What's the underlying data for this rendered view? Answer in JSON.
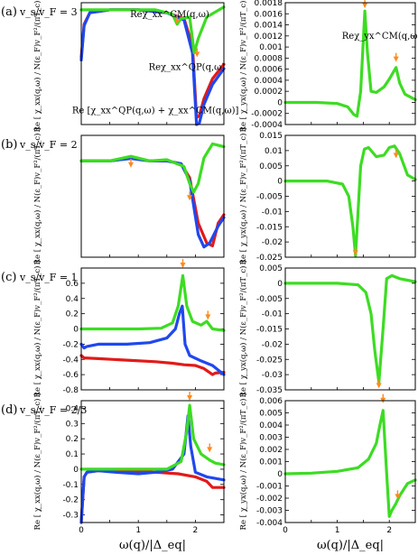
{
  "chart_data": [
    {
      "type": "line",
      "panel": "(a)",
      "side": "left",
      "row_label": "v_s/v_F = 3",
      "ylabel": "Re [ χ_xx(q,ω) / N(ε_F)v_F²/(πT_c) ]",
      "xlim": [
        0,
        2.5
      ],
      "ylim": [
        -0.8,
        0.05
      ],
      "yticks": [],
      "xticks": [],
      "annotations": [
        {
          "text": "Reχ_xx^CM(q,ω)",
          "color": "#3ddc23",
          "x": 1.55,
          "y": -0.05
        },
        {
          "text": "Reχ_xx^QP(q,ω)",
          "color": "#e21a1a",
          "x": 1.85,
          "y": -0.42
        },
        {
          "text": "Re [χ_xx^QP(q,ω) + χ_xx^CM(q,ω)]",
          "color": "#2048ee",
          "x": 1.3,
          "y": -0.72
        }
      ],
      "markers": [
        {
          "x": 1.68,
          "y": -0.1
        },
        {
          "x": 2.03,
          "y": -0.33
        }
      ],
      "series": [
        {
          "color": "#e21a1a",
          "x": [
            0,
            0.05,
            0.15,
            0.5,
            1.0,
            1.5,
            1.8,
            1.95,
            2.02,
            2.07,
            2.15,
            2.3,
            2.5
          ],
          "y": [
            -0.33,
            -0.1,
            -0.02,
            0,
            0,
            -0.02,
            -0.06,
            -0.25,
            -0.75,
            -0.74,
            -0.62,
            -0.48,
            -0.38
          ]
        },
        {
          "color": "#2048ee",
          "x": [
            0,
            0.05,
            0.15,
            0.5,
            1.0,
            1.5,
            1.8,
            1.95,
            2.02,
            2.07,
            2.15,
            2.3,
            2.5
          ],
          "y": [
            -0.35,
            -0.11,
            -0.02,
            0,
            0,
            -0.02,
            -0.07,
            -0.3,
            -0.8,
            -0.79,
            -0.66,
            -0.52,
            -0.41
          ]
        },
        {
          "color": "#3ddc23",
          "x": [
            0,
            0.1,
            0.5,
            1.0,
            1.3,
            1.6,
            1.68,
            1.75,
            1.9,
            1.98,
            2.05,
            2.2,
            2.5
          ],
          "y": [
            0,
            0,
            0,
            0,
            0,
            -0.03,
            -0.1,
            -0.06,
            -0.05,
            -0.3,
            -0.2,
            -0.05,
            0.02
          ]
        }
      ]
    },
    {
      "type": "line",
      "panel": "(a)",
      "side": "right",
      "ylabel": "Re [ χ_yx(q,ω) / N(ε_F)v_F²/(πT_c) ]",
      "xlim": [
        0,
        2.5
      ],
      "ylim": [
        -0.0004,
        0.0018
      ],
      "yticks": [
        "-0.0004",
        "-0.0002",
        "0",
        "0.0002",
        "0.0004",
        "0.0006",
        "0.0008",
        "0.001",
        "0.0012",
        "0.0014",
        "0.0016",
        "0.0018"
      ],
      "xticks": [],
      "annotations": [
        {
          "text": "Reχ_yx^CM(q,ω)",
          "color": "#3ddc23",
          "x": 1.85,
          "y": 0.00115
        }
      ],
      "markers": [
        {
          "x": 1.53,
          "y": 0.0017
        },
        {
          "x": 2.13,
          "y": 0.00073
        }
      ],
      "series": [
        {
          "color": "#3ddc23",
          "x": [
            0,
            0.6,
            1.0,
            1.2,
            1.32,
            1.38,
            1.45,
            1.53,
            1.58,
            1.65,
            1.75,
            1.9,
            2.0,
            2.08,
            2.13,
            2.2,
            2.3,
            2.5
          ],
          "y": [
            0,
            0,
            -2e-05,
            -8e-05,
            -0.00022,
            -0.00025,
            0.0002,
            0.00165,
            0.0009,
            0.0002,
            0.00018,
            0.00028,
            0.00042,
            0.00055,
            0.00063,
            0.00035,
            0.00015,
            5e-05
          ]
        }
      ]
    },
    {
      "type": "line",
      "panel": "(b)",
      "side": "left",
      "row_label": "v_s/v_F = 2",
      "ylabel": "Re [ χ_xx(q,ω) / N(ε_F)v_F²/(πT_c) ]",
      "xlim": [
        0,
        2.5
      ],
      "ylim": [
        -1.7,
        0.45
      ],
      "yticks": [],
      "xticks": [],
      "markers": [
        {
          "x": 0.87,
          "y": -0.12
        },
        {
          "x": 1.9,
          "y": -0.7
        }
      ],
      "series": [
        {
          "color": "#e21a1a",
          "x": [
            0,
            0.1,
            0.5,
            0.87,
            1.2,
            1.5,
            1.75,
            1.9,
            2.05,
            2.2,
            2.3,
            2.4,
            2.5
          ],
          "y": [
            0,
            0,
            0,
            0.05,
            0,
            0,
            -0.05,
            -0.3,
            -1.1,
            -1.45,
            -1.5,
            -1.1,
            -0.95
          ]
        },
        {
          "color": "#2048ee",
          "x": [
            0,
            0.1,
            0.5,
            0.87,
            1.2,
            1.5,
            1.75,
            1.9,
            2.05,
            2.15,
            2.25,
            2.4,
            2.5
          ],
          "y": [
            0,
            0,
            0,
            0.04,
            0,
            0,
            -0.05,
            -0.35,
            -1.3,
            -1.52,
            -1.45,
            -1.15,
            -1.0
          ]
        },
        {
          "color": "#3ddc23",
          "x": [
            0,
            0.1,
            0.5,
            0.87,
            1.2,
            1.5,
            1.8,
            1.9,
            1.97,
            2.05,
            2.15,
            2.3,
            2.5
          ],
          "y": [
            0,
            0,
            0,
            0.08,
            0,
            0.02,
            -0.1,
            -0.4,
            -0.55,
            -0.4,
            0.05,
            0.3,
            0.25
          ]
        }
      ]
    },
    {
      "type": "line",
      "panel": "(b)",
      "side": "right",
      "ylabel": "Re [ χ_yx(q,ω) / N(ε_F)v_F²/(πT_c) ]",
      "xlim": [
        0,
        2.5
      ],
      "ylim": [
        -0.025,
        0.015
      ],
      "yticks": [
        "-0.025",
        "-0.02",
        "-0.015",
        "-0.01",
        "-0.005",
        "0",
        "0.005",
        "0.01",
        "0.015"
      ],
      "xticks": [],
      "markers": [
        {
          "x": 1.35,
          "y": -0.0245
        },
        {
          "x": 2.13,
          "y": 0.0075
        }
      ],
      "series": [
        {
          "color": "#3ddc23",
          "x": [
            0,
            0.8,
            1.1,
            1.22,
            1.3,
            1.35,
            1.4,
            1.45,
            1.52,
            1.6,
            1.75,
            1.9,
            2.0,
            2.1,
            2.2,
            2.35,
            2.5
          ],
          "y": [
            0,
            0,
            -0.001,
            -0.005,
            -0.015,
            -0.0245,
            -0.01,
            0.005,
            0.0105,
            0.011,
            0.008,
            0.0085,
            0.011,
            0.0115,
            0.009,
            0.002,
            0.0005
          ]
        }
      ]
    },
    {
      "type": "line",
      "panel": "(c)",
      "side": "left",
      "row_label": "v_s/v_F = 1",
      "ylabel": "Re [ χ_xx(q,ω) / N(ε_F)v_F²/(πT_c) ]",
      "xlim": [
        0,
        2.5
      ],
      "ylim": [
        -0.8,
        0.8
      ],
      "yticks": [
        "-0.8",
        "-0.6",
        "-0.4",
        "-0.2",
        "0",
        "0.2",
        "0.4",
        "0.6"
      ],
      "xticks": [],
      "markers": [
        {
          "x": 1.78,
          "y": 0.8
        },
        {
          "x": 2.22,
          "y": 0.12
        }
      ],
      "series": [
        {
          "color": "#e21a1a",
          "x": [
            0,
            0.05,
            0.3,
            0.8,
            1.3,
            1.6,
            1.8,
            2.0,
            2.15,
            2.3,
            2.35,
            2.5
          ],
          "y": [
            -0.35,
            -0.38,
            -0.39,
            -0.41,
            -0.43,
            -0.45,
            -0.47,
            -0.48,
            -0.52,
            -0.6,
            -0.58,
            -0.57
          ]
        },
        {
          "color": "#2048ee",
          "x": [
            0,
            0.05,
            0.1,
            0.3,
            0.8,
            1.2,
            1.5,
            1.65,
            1.72,
            1.77,
            1.82,
            1.9,
            2.1,
            2.3,
            2.5
          ],
          "y": [
            -0.2,
            -0.25,
            -0.23,
            -0.2,
            -0.2,
            -0.18,
            -0.12,
            0.0,
            0.2,
            0.3,
            -0.2,
            -0.35,
            -0.42,
            -0.48,
            -0.6
          ]
        },
        {
          "color": "#3ddc23",
          "x": [
            0,
            0.5,
            1.0,
            1.4,
            1.6,
            1.7,
            1.78,
            1.85,
            1.95,
            2.1,
            2.2,
            2.3,
            2.5
          ],
          "y": [
            0,
            0,
            0,
            0.01,
            0.08,
            0.3,
            0.7,
            0.3,
            0.1,
            0.05,
            0.1,
            0.0,
            -0.02
          ]
        }
      ]
    },
    {
      "type": "line",
      "panel": "(c)",
      "side": "right",
      "ylabel": "Re [ χ_yx(q,ω) / N(ε_F)v_F²/(πT_c) ]",
      "xlim": [
        0,
        2.5
      ],
      "ylim": [
        -0.035,
        0.005
      ],
      "yticks": [
        "-0.035",
        "-0.03",
        "-0.025",
        "-0.02",
        "-0.015",
        "-0.01",
        "-0.005",
        "0",
        "0.005"
      ],
      "xticks": [],
      "markers": [
        {
          "x": 1.8,
          "y": -0.0345
        }
      ],
      "series": [
        {
          "color": "#3ddc23",
          "x": [
            0,
            1.0,
            1.4,
            1.55,
            1.65,
            1.72,
            1.8,
            1.88,
            1.95,
            2.05,
            2.2,
            2.35,
            2.5
          ],
          "y": [
            0,
            0,
            -0.0005,
            -0.003,
            -0.01,
            -0.022,
            -0.0325,
            -0.015,
            0.0015,
            0.0025,
            0.0015,
            0.001,
            0.0005
          ]
        }
      ]
    },
    {
      "type": "line",
      "panel": "(d)",
      "side": "left",
      "row_label": "v_s/v_F = 2/3",
      "ylabel": "Re [ χ_xx(q,ω) / N(ε_F)v_F²/(πT_c) ]",
      "xlim": [
        0,
        2.5
      ],
      "ylim": [
        -0.35,
        0.45
      ],
      "yticks": [
        "-0.3",
        "-0.2",
        "-0.1",
        "0",
        "0.1",
        "0.2",
        "0.3",
        "0.4"
      ],
      "xticks": [
        "0",
        "1",
        "2"
      ],
      "xlabel": "ω(q)/|Δ_eq|",
      "markers": [
        {
          "x": 1.9,
          "y": 0.45
        },
        {
          "x": 2.25,
          "y": 0.11
        }
      ],
      "series": [
        {
          "color": "#e21a1a",
          "x": [
            0,
            0.05,
            0.1,
            0.3,
            0.8,
            1.3,
            1.7,
            2.0,
            2.2,
            2.3,
            2.5
          ],
          "y": [
            -0.35,
            -0.05,
            -0.02,
            -0.01,
            -0.01,
            -0.02,
            -0.03,
            -0.05,
            -0.08,
            -0.12,
            -0.12
          ]
        },
        {
          "color": "#2048ee",
          "x": [
            0,
            0.05,
            0.1,
            0.3,
            0.6,
            1.0,
            1.3,
            1.6,
            1.8,
            1.87,
            1.92,
            2.0,
            2.2,
            2.5
          ],
          "y": [
            -0.35,
            -0.05,
            -0.02,
            -0.01,
            -0.02,
            -0.03,
            -0.02,
            -0.0,
            0.1,
            0.35,
            0.15,
            -0.02,
            -0.05,
            -0.07
          ]
        },
        {
          "color": "#3ddc23",
          "x": [
            0,
            0.5,
            1.0,
            1.5,
            1.75,
            1.85,
            1.9,
            1.97,
            2.1,
            2.25,
            2.35,
            2.5
          ],
          "y": [
            0,
            0,
            0,
            0.0,
            0.05,
            0.25,
            0.42,
            0.2,
            0.1,
            0.06,
            0.04,
            0.03
          ]
        }
      ]
    },
    {
      "type": "line",
      "panel": "(d)",
      "side": "right",
      "ylabel": "Re [ χ_yx(q,ω) / N(ε_F)v_F²/(πT_c) ]",
      "xlim": [
        0,
        2.5
      ],
      "ylim": [
        -0.004,
        0.006
      ],
      "yticks": [
        "-0.004",
        "-0.003",
        "-0.002",
        "-0.001",
        "0",
        "0.001",
        "0.002",
        "0.003",
        "0.004",
        "0.005",
        "0.006"
      ],
      "xticks": [
        "0",
        "1",
        "2"
      ],
      "xlabel": "ω(q)/|Δ_eq|",
      "markers": [
        {
          "x": 1.88,
          "y": 0.0058
        },
        {
          "x": 2.16,
          "y": -0.0021
        }
      ],
      "series": [
        {
          "color": "#3ddc23",
          "x": [
            0,
            0.5,
            1.0,
            1.4,
            1.6,
            1.75,
            1.82,
            1.88,
            1.95,
            2.0,
            2.05,
            2.12,
            2.2,
            2.35,
            2.5
          ],
          "y": [
            0,
            5e-05,
            0.0002,
            0.0005,
            0.0012,
            0.0025,
            0.004,
            0.0052,
            0.0,
            -0.0035,
            -0.003,
            -0.0025,
            -0.0018,
            -0.0008,
            -0.0005
          ]
        }
      ]
    }
  ],
  "row_labels": [
    "(a)",
    "(b)",
    "(c)",
    "(d)"
  ]
}
